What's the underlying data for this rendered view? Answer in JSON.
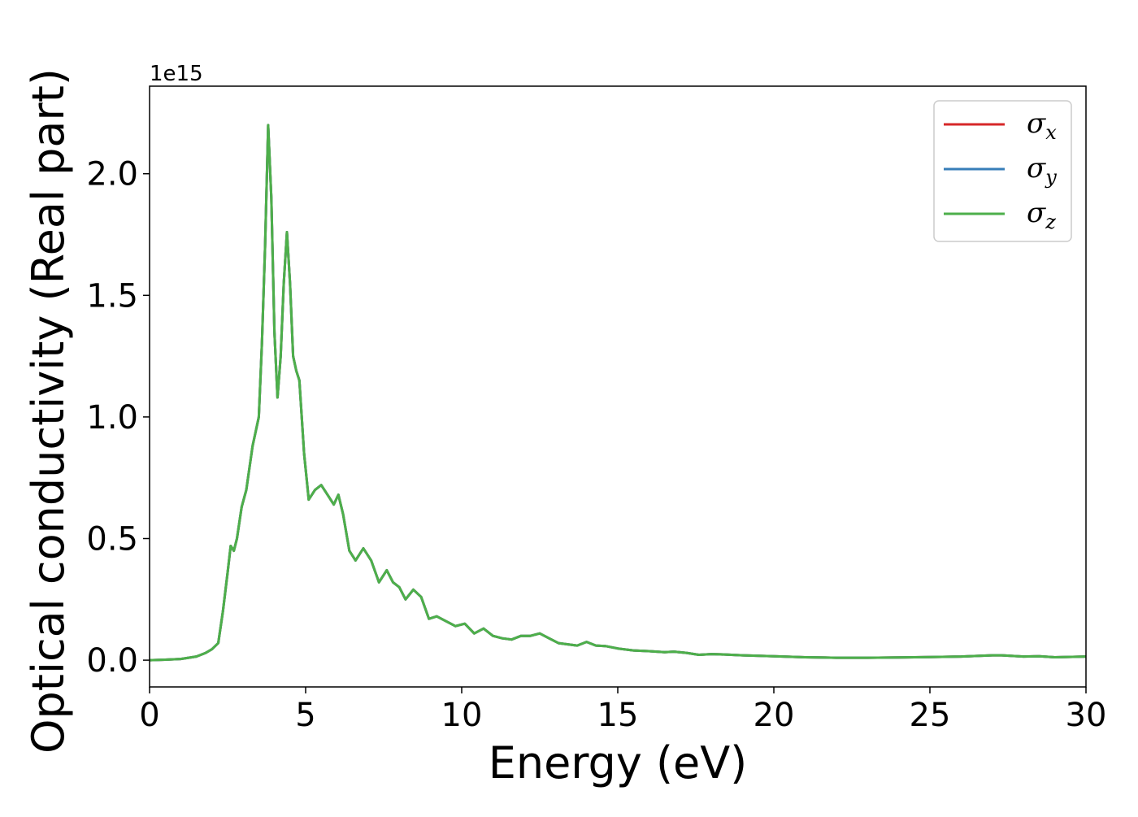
{
  "chart_data": {
    "type": "line",
    "xlabel": "Energy (eV)",
    "ylabel": "Optical conductivity (Real part)",
    "y_offset_label": "1e15",
    "xlim": [
      0,
      30
    ],
    "ylim": [
      -0.11,
      2.36
    ],
    "x_ticks": [
      0,
      5,
      10,
      15,
      20,
      25,
      30
    ],
    "y_ticks": [
      0.0,
      0.5,
      1.0,
      1.5,
      2.0
    ],
    "x_tick_labels": [
      "0",
      "5",
      "10",
      "15",
      "20",
      "25",
      "30"
    ],
    "y_tick_labels": [
      "0.0",
      "0.5",
      "1.0",
      "1.5",
      "2.0"
    ],
    "grid": false,
    "legend_position": "top-right",
    "x": [
      0,
      0.5,
      1.0,
      1.5,
      1.8,
      2.0,
      2.2,
      2.35,
      2.5,
      2.6,
      2.7,
      2.8,
      2.95,
      3.1,
      3.3,
      3.5,
      3.6,
      3.7,
      3.8,
      3.9,
      4.0,
      4.1,
      4.2,
      4.3,
      4.4,
      4.5,
      4.6,
      4.7,
      4.8,
      4.95,
      5.1,
      5.3,
      5.5,
      5.7,
      5.9,
      6.05,
      6.2,
      6.4,
      6.6,
      6.85,
      7.1,
      7.35,
      7.6,
      7.8,
      8.0,
      8.2,
      8.45,
      8.7,
      8.95,
      9.2,
      9.5,
      9.8,
      10.1,
      10.4,
      10.7,
      11.0,
      11.3,
      11.6,
      11.9,
      12.2,
      12.5,
      12.8,
      13.1,
      13.4,
      13.7,
      14.0,
      14.3,
      14.6,
      15.0,
      15.5,
      16.0,
      16.5,
      16.8,
      17.2,
      17.6,
      18.0,
      18.5,
      19.0,
      20.0,
      21.0,
      22.0,
      23.0,
      24.0,
      25.0,
      26.0,
      27.0,
      27.3,
      28.0,
      28.5,
      29.0,
      30.0
    ],
    "series": [
      {
        "name": "σx",
        "color": "#d62728",
        "values": [
          0.0,
          0.002,
          0.005,
          0.015,
          0.03,
          0.045,
          0.07,
          0.2,
          0.36,
          0.47,
          0.45,
          0.5,
          0.63,
          0.7,
          0.88,
          1.0,
          1.3,
          1.7,
          2.2,
          1.9,
          1.35,
          1.08,
          1.25,
          1.55,
          1.76,
          1.55,
          1.25,
          1.19,
          1.15,
          0.85,
          0.66,
          0.7,
          0.72,
          0.68,
          0.64,
          0.68,
          0.6,
          0.45,
          0.41,
          0.46,
          0.41,
          0.32,
          0.37,
          0.32,
          0.3,
          0.25,
          0.29,
          0.26,
          0.17,
          0.18,
          0.16,
          0.14,
          0.15,
          0.11,
          0.13,
          0.1,
          0.09,
          0.085,
          0.1,
          0.1,
          0.11,
          0.09,
          0.07,
          0.065,
          0.06,
          0.075,
          0.06,
          0.058,
          0.048,
          0.04,
          0.037,
          0.033,
          0.035,
          0.03,
          0.022,
          0.025,
          0.023,
          0.02,
          0.016,
          0.012,
          0.01,
          0.01,
          0.011,
          0.013,
          0.015,
          0.02,
          0.02,
          0.015,
          0.016,
          0.012,
          0.015
        ]
      },
      {
        "name": "σy",
        "color": "#377eb8",
        "values": [
          0.0,
          0.002,
          0.005,
          0.015,
          0.03,
          0.045,
          0.07,
          0.2,
          0.36,
          0.47,
          0.45,
          0.5,
          0.63,
          0.7,
          0.88,
          1.0,
          1.3,
          1.7,
          2.2,
          1.9,
          1.35,
          1.08,
          1.25,
          1.55,
          1.76,
          1.55,
          1.25,
          1.19,
          1.15,
          0.85,
          0.66,
          0.7,
          0.72,
          0.68,
          0.64,
          0.68,
          0.6,
          0.45,
          0.41,
          0.46,
          0.41,
          0.32,
          0.37,
          0.32,
          0.3,
          0.25,
          0.29,
          0.26,
          0.17,
          0.18,
          0.16,
          0.14,
          0.15,
          0.11,
          0.13,
          0.1,
          0.09,
          0.085,
          0.1,
          0.1,
          0.11,
          0.09,
          0.07,
          0.065,
          0.06,
          0.075,
          0.06,
          0.058,
          0.048,
          0.04,
          0.037,
          0.033,
          0.035,
          0.03,
          0.022,
          0.025,
          0.023,
          0.02,
          0.016,
          0.012,
          0.01,
          0.01,
          0.011,
          0.013,
          0.015,
          0.02,
          0.02,
          0.015,
          0.016,
          0.012,
          0.015
        ]
      },
      {
        "name": "σz",
        "color": "#4daf4a",
        "values": [
          0.0,
          0.002,
          0.005,
          0.015,
          0.03,
          0.045,
          0.07,
          0.2,
          0.36,
          0.47,
          0.45,
          0.5,
          0.63,
          0.7,
          0.88,
          1.0,
          1.3,
          1.7,
          2.2,
          1.9,
          1.35,
          1.08,
          1.25,
          1.55,
          1.76,
          1.55,
          1.25,
          1.19,
          1.15,
          0.85,
          0.66,
          0.7,
          0.72,
          0.68,
          0.64,
          0.68,
          0.6,
          0.45,
          0.41,
          0.46,
          0.41,
          0.32,
          0.37,
          0.32,
          0.3,
          0.25,
          0.29,
          0.26,
          0.17,
          0.18,
          0.16,
          0.14,
          0.15,
          0.11,
          0.13,
          0.1,
          0.09,
          0.085,
          0.1,
          0.1,
          0.11,
          0.09,
          0.07,
          0.065,
          0.06,
          0.075,
          0.06,
          0.058,
          0.048,
          0.04,
          0.037,
          0.033,
          0.035,
          0.03,
          0.022,
          0.025,
          0.023,
          0.02,
          0.016,
          0.012,
          0.01,
          0.01,
          0.011,
          0.013,
          0.015,
          0.02,
          0.02,
          0.015,
          0.016,
          0.012,
          0.015
        ]
      }
    ],
    "legend": [
      {
        "symbol": "σ",
        "sub": "x",
        "color": "#d62728"
      },
      {
        "symbol": "σ",
        "sub": "y",
        "color": "#377eb8"
      },
      {
        "symbol": "σ",
        "sub": "z",
        "color": "#4daf4a"
      }
    ]
  }
}
